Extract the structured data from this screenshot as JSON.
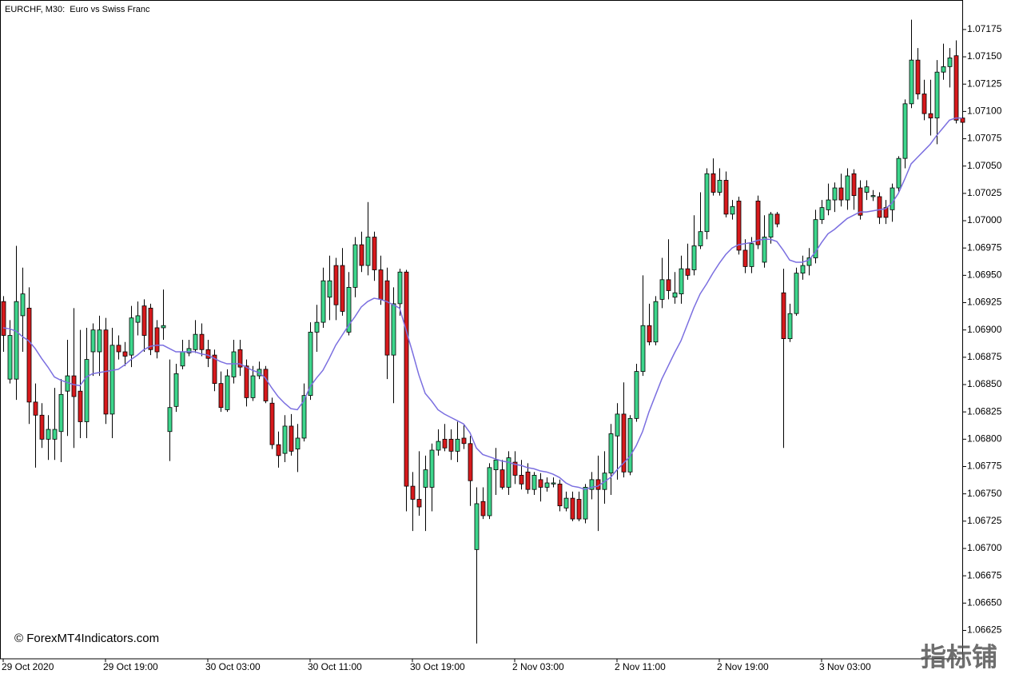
{
  "chart_data": {
    "type": "candlestick",
    "title": "EURCHF, M30:  Euro vs Swiss Franc",
    "watermark": "© ForexMT4Indicators.com",
    "logo": "指标铺",
    "up_color": "#3dd68c",
    "down_color": "#d7191c",
    "categories": [
      "29 Oct 2020",
      null,
      null,
      null,
      null,
      null,
      null,
      null,
      null,
      null,
      null,
      null,
      null,
      null,
      null,
      null,
      "29 Oct 19:00",
      null,
      null,
      null,
      null,
      null,
      null,
      null,
      null,
      null,
      null,
      null,
      null,
      null,
      null,
      null,
      "30 Oct 03:00",
      null,
      null,
      null,
      null,
      null,
      null,
      null,
      null,
      null,
      null,
      null,
      null,
      null,
      null,
      null,
      "30 Oct 11:00",
      null,
      null,
      null,
      null,
      null,
      null,
      null,
      null,
      null,
      null,
      null,
      null,
      null,
      null,
      null,
      "30 Oct 19:00",
      null,
      null,
      null,
      null,
      null,
      null,
      null,
      null,
      null,
      null,
      null,
      null,
      null,
      null,
      null,
      "2 Nov 03:00",
      null,
      null,
      null,
      null,
      null,
      null,
      null,
      null,
      null,
      null,
      null,
      null,
      null,
      null,
      null,
      "2 Nov 11:00",
      null,
      null,
      null,
      null,
      null,
      null,
      null,
      null,
      null,
      null,
      null,
      null,
      null,
      null,
      null,
      "2 Nov 19:00",
      null,
      null,
      null,
      null,
      null,
      null,
      null,
      null,
      null,
      null,
      null,
      null,
      null,
      null,
      null,
      "3 Nov 03:00",
      null,
      null,
      null,
      null,
      null,
      null,
      null,
      null,
      null,
      null,
      null,
      null,
      null,
      null,
      null,
      null,
      null,
      null,
      null,
      null,
      null,
      null
    ],
    "open": [
      1.06926,
      1.06855,
      1.06855,
      1.06913,
      1.0692,
      1.06834,
      1.06822,
      1.068,
      1.068,
      1.06807,
      1.06844,
      1.06858,
      1.06844,
      1.06816,
      1.0688,
      1.0688,
      1.069,
      1.06823,
      1.06886,
      1.0688,
      1.06877,
      1.06907,
      1.06922,
      1.0692,
      1.06902,
      1.06902,
      1.06807,
      1.0683,
      1.06867,
      1.06879,
      1.06882,
      1.06896,
      1.06882,
      1.06877,
      1.06851,
      1.06827,
      1.06857,
      1.06882,
      1.06867,
      1.06838,
      1.06858,
      1.06864,
      1.06833,
      1.06795,
      1.06787,
      1.06812,
      1.06791,
      1.06801,
      1.0684,
      1.06898,
      1.06907,
      1.0693,
      1.06959,
      1.06959,
      1.06898,
      1.06939,
      1.06978,
      1.06959,
      1.06985,
      1.06955,
      1.06945,
      1.06877,
      1.06924,
      1.06953,
      1.06757,
      1.06745,
      1.06756,
      1.06756,
      1.0679,
      1.068,
      1.068,
      1.06789,
      1.06801,
      1.06796,
      1.06699,
      1.06743,
      1.0673,
      1.06772,
      1.06772,
      1.06756,
      1.06779,
      1.06767,
      1.0677,
      1.06754,
      1.06763,
      1.06756,
      1.06759,
      1.06759,
      1.06737,
      1.06746,
      1.06745,
      1.06727,
      1.06754,
      1.06763,
      1.06754,
      1.06769,
      1.06803,
      1.06823,
      1.0677,
      1.06819,
      1.06862,
      1.06904,
      1.06889,
      1.06928,
      1.06946,
      1.0693,
      1.06933,
      1.06956,
      1.06955,
      1.06977,
      1.0699,
      1.07043,
      1.07026,
      1.07037,
      1.07006,
      1.07018,
      1.06973,
      1.06958,
      1.07018,
      1.06962,
      1.06985,
      1.07006,
      1.06934,
      1.06892,
      1.06915,
      1.06952,
      1.06959,
      1.06966,
      1.07001,
      1.0701,
      1.07019,
      1.0703,
      1.07019,
      1.07043,
      1.0703,
      1.07026,
      1.07022,
      1.07022,
      1.07012,
      1.0701,
      1.0703,
      1.07057,
      1.07107,
      1.07147,
      1.07116,
      1.07098,
      1.07094,
      1.07136,
      1.07141,
      1.07151,
      1.07094
    ],
    "high": [
      1.06931,
      1.06909,
      1.06977,
      1.06957,
      1.06939,
      1.06851,
      1.06833,
      1.06822,
      1.06847,
      1.06855,
      1.06891,
      1.0692,
      1.069,
      1.06902,
      1.06906,
      1.06913,
      1.06911,
      1.06902,
      1.06895,
      1.06889,
      1.06922,
      1.06926,
      1.06928,
      1.06924,
      1.06909,
      1.06937,
      1.06873,
      1.06869,
      1.06891,
      1.06891,
      1.06909,
      1.06906,
      1.06891,
      1.06882,
      1.06862,
      1.06864,
      1.06891,
      1.06891,
      1.06873,
      1.06867,
      1.06871,
      1.06867,
      1.06838,
      1.06807,
      1.06822,
      1.06823,
      1.06814,
      1.06851,
      1.06907,
      1.06923,
      1.06957,
      1.06968,
      1.06966,
      1.06975,
      1.06953,
      1.06985,
      1.0699,
      1.07017,
      1.0699,
      1.06968,
      1.06957,
      1.06939,
      1.06956,
      1.06955,
      1.0677,
      1.06789,
      1.06785,
      1.06796,
      1.06809,
      1.06814,
      1.06809,
      1.06816,
      1.06814,
      1.06803,
      1.06756,
      1.06756,
      1.06778,
      1.06792,
      1.06781,
      1.06789,
      1.06789,
      1.06781,
      1.06778,
      1.0677,
      1.06769,
      1.06765,
      1.06765,
      1.06763,
      1.06752,
      1.06752,
      1.06752,
      1.06759,
      1.0677,
      1.06785,
      1.06789,
      1.06814,
      1.06833,
      1.06852,
      1.06822,
      1.06869,
      1.0695,
      1.06924,
      1.06931,
      1.06966,
      1.06983,
      1.06953,
      1.06968,
      1.06979,
      1.07005,
      1.07026,
      1.07048,
      1.07057,
      1.07048,
      1.07045,
      1.07019,
      1.07022,
      1.06983,
      1.06985,
      1.07023,
      1.07005,
      1.07008,
      1.07008,
      1.06956,
      1.06924,
      1.06957,
      1.06968,
      1.06975,
      1.0701,
      1.07019,
      1.07034,
      1.07035,
      1.07043,
      1.07048,
      1.07047,
      1.07037,
      1.07037,
      1.07028,
      1.07026,
      1.07019,
      1.07034,
      1.07059,
      1.07111,
      1.07184,
      1.07158,
      1.07129,
      1.07129,
      1.07147,
      1.07162,
      1.07158,
      1.07165,
      1.07107
    ],
    "low": [
      1.0688,
      1.06851,
      1.06836,
      1.0688,
      1.06814,
      1.06774,
      1.06792,
      1.06781,
      1.06781,
      1.06779,
      1.06803,
      1.06792,
      1.06801,
      1.06801,
      1.06858,
      1.06858,
      1.06814,
      1.06801,
      1.06873,
      1.06867,
      1.06866,
      1.06895,
      1.0688,
      1.06877,
      1.06874,
      1.06891,
      1.0678,
      1.06825,
      1.06864,
      1.06876,
      1.06879,
      1.06876,
      1.06866,
      1.06844,
      1.06825,
      1.06825,
      1.06851,
      1.06858,
      1.0683,
      1.06835,
      1.06855,
      1.06833,
      1.06791,
      1.06774,
      1.06779,
      1.06785,
      1.0677,
      1.06798,
      1.06836,
      1.0688,
      1.06902,
      1.06909,
      1.06909,
      1.06913,
      1.06895,
      1.0693,
      1.06953,
      1.0695,
      1.06945,
      1.06923,
      1.06855,
      1.06833,
      1.06913,
      1.06734,
      1.06716,
      1.0673,
      1.06716,
      1.06734,
      1.06785,
      1.06789,
      1.06781,
      1.06779,
      1.06791,
      1.06739,
      1.06613,
      1.06727,
      1.06727,
      1.06749,
      1.06754,
      1.06749,
      1.06759,
      1.06754,
      1.0675,
      1.06749,
      1.06743,
      1.06752,
      1.06756,
      1.06734,
      1.06734,
      1.06725,
      1.06725,
      1.06723,
      1.06745,
      1.06716,
      1.06741,
      1.06749,
      1.06763,
      1.06765,
      1.06767,
      1.06816,
      1.06858,
      1.06886,
      1.06886,
      1.0692,
      1.06928,
      1.06924,
      1.06924,
      1.06946,
      1.0695,
      1.06974,
      1.06983,
      1.07023,
      1.07023,
      1.07003,
      1.07001,
      1.06969,
      1.06952,
      1.06952,
      1.06974,
      1.06957,
      1.06979,
      1.06994,
      1.06792,
      1.06889,
      1.06913,
      1.06946,
      1.0695,
      1.06961,
      1.06997,
      1.07005,
      1.07008,
      1.07013,
      1.0701,
      1.0701,
      1.07001,
      1.07019,
      1.07018,
      1.06997,
      1.06997,
      1.06999,
      1.07026,
      1.07048,
      1.07103,
      1.07111,
      1.07092,
      1.07078,
      1.0707,
      1.07129,
      1.07122,
      1.07089,
      1.07057
    ],
    "close": [
      1.06895,
      1.06895,
      1.06926,
      1.06933,
      1.06834,
      1.06822,
      1.068,
      1.06809,
      1.06809,
      1.06841,
      1.06858,
      1.06839,
      1.06816,
      1.06873,
      1.069,
      1.069,
      1.06823,
      1.06886,
      1.0688,
      1.06876,
      1.06911,
      1.06913,
      1.06895,
      1.06882,
      1.0688,
      1.06904,
      1.06829,
      1.0686,
      1.0688,
      1.06883,
      1.06896,
      1.06882,
      1.06874,
      1.06851,
      1.06829,
      1.06858,
      1.0688,
      1.06866,
      1.06838,
      1.06858,
      1.06864,
      1.06835,
      1.06795,
      1.06785,
      1.06812,
      1.06789,
      1.06801,
      1.0684,
      1.06898,
      1.06907,
      1.06945,
      1.06945,
      1.06923,
      1.06917,
      1.06939,
      1.06978,
      1.06959,
      1.06985,
      1.06955,
      1.06928,
      1.06877,
      1.06924,
      1.06953,
      1.06757,
      1.06745,
      1.06738,
      1.06772,
      1.0679,
      1.06798,
      1.06792,
      1.06789,
      1.068,
      1.06796,
      1.06762,
      1.06741,
      1.0673,
      1.06774,
      1.06781,
      1.06756,
      1.06783,
      1.06767,
      1.06759,
      1.06754,
      1.06767,
      1.06756,
      1.0676,
      1.0676,
      1.06739,
      1.06746,
      1.06727,
      1.06727,
      1.06756,
      1.06763,
      1.06754,
      1.06769,
      1.06805,
      1.06823,
      1.0677,
      1.06819,
      1.06862,
      1.06904,
      1.06889,
      1.06926,
      1.06946,
      1.06936,
      1.06934,
      1.06956,
      1.0695,
      1.06977,
      1.0699,
      1.07043,
      1.07026,
      1.07037,
      1.07006,
      1.07013,
      1.06973,
      1.06958,
      1.06979,
      1.06978,
      1.06985,
      1.07006,
      1.06997,
      1.06892,
      1.06915,
      1.06952,
      1.06959,
      1.06966,
      1.07001,
      1.07012,
      1.07019,
      1.0703,
      1.07019,
      1.07041,
      1.07023,
      1.07005,
      1.07031,
      1.07023,
      1.07003,
      1.07003,
      1.0703,
      1.07057,
      1.07107,
      1.07147,
      1.07116,
      1.07098,
      1.07094,
      1.07136,
      1.07141,
      1.07149,
      1.07092,
      1.0709
    ],
    "series": [
      {
        "color": "#7b6fe0",
        "values": [
          1.06902,
          1.06901,
          1.06899,
          1.06894,
          1.0689,
          1.06883,
          1.06874,
          1.06866,
          1.06857,
          1.06854,
          1.06852,
          1.0685,
          1.06849,
          1.06857,
          1.0686,
          1.06861,
          1.06862,
          1.06863,
          1.06864,
          1.06868,
          1.06873,
          1.06877,
          1.06882,
          1.06885,
          1.06886,
          1.06886,
          1.06883,
          1.0688,
          1.0688,
          1.0688,
          1.0688,
          1.06878,
          1.06877,
          1.06874,
          1.06871,
          1.06869,
          1.06869,
          1.06869,
          1.06866,
          1.06863,
          1.06861,
          1.06856,
          1.06847,
          1.06839,
          1.06833,
          1.06828,
          1.06827,
          1.06835,
          1.06848,
          1.06856,
          1.06863,
          1.06874,
          1.06886,
          1.06895,
          1.06904,
          1.06912,
          1.06921,
          1.06926,
          1.06929,
          1.06928,
          1.06926,
          1.06923,
          1.0692,
          1.069,
          1.0688,
          1.06859,
          1.06842,
          1.06835,
          1.06827,
          1.06823,
          1.0682,
          1.06817,
          1.06814,
          1.06806,
          1.06792,
          1.06786,
          1.06784,
          1.06782,
          1.0678,
          1.06779,
          1.06777,
          1.06776,
          1.06774,
          1.06773,
          1.06771,
          1.0677,
          1.06768,
          1.06765,
          1.0676,
          1.06757,
          1.06756,
          1.06754,
          1.06756,
          1.06757,
          1.06761,
          1.06765,
          1.06772,
          1.06778,
          1.06784,
          1.06794,
          1.06807,
          1.06825,
          1.0684,
          1.06855,
          1.06867,
          1.06879,
          1.0689,
          1.06905,
          1.0692,
          1.06933,
          1.06942,
          1.06952,
          1.06961,
          1.06969,
          1.06975,
          1.06978,
          1.06979,
          1.0698,
          1.06982,
          1.06983,
          1.06983,
          1.06981,
          1.06973,
          1.06964,
          1.06962,
          1.06962,
          1.06964,
          1.06971,
          1.0698,
          1.06988,
          1.06992,
          1.06997,
          1.07002,
          1.07005,
          1.07008,
          1.07008,
          1.07009,
          1.0701,
          1.07011,
          1.07016,
          1.07025,
          1.07038,
          1.07052,
          1.07058,
          1.07064,
          1.0707,
          1.07078,
          1.07085,
          1.07092,
          1.07094,
          1.07094
        ]
      }
    ],
    "ylim": [
      1.06599,
      1.07202
    ],
    "yticks": [
      1.06625,
      {
        "value": 1.0665,
        "label": "1.06650"
      },
      1.06675,
      {
        "value": 1.067,
        "label": "1.06700"
      },
      1.06725,
      {
        "value": 1.0675,
        "label": "1.06750"
      },
      1.06775,
      {
        "value": 1.068,
        "label": "1.06800"
      },
      1.06825,
      {
        "value": 1.0685,
        "label": "1.06850"
      },
      1.06875,
      {
        "value": 1.069,
        "label": "1.06900"
      },
      1.06925,
      {
        "value": 1.0695,
        "label": "1.06950"
      },
      1.06975,
      {
        "value": 1.07,
        "label": "1.07000"
      },
      1.07025,
      {
        "value": 1.0705,
        "label": "1.07050"
      },
      1.07075,
      {
        "value": 1.071,
        "label": "1.07100"
      },
      1.07125,
      {
        "value": 1.0715,
        "label": "1.07150"
      },
      1.07175
    ]
  }
}
